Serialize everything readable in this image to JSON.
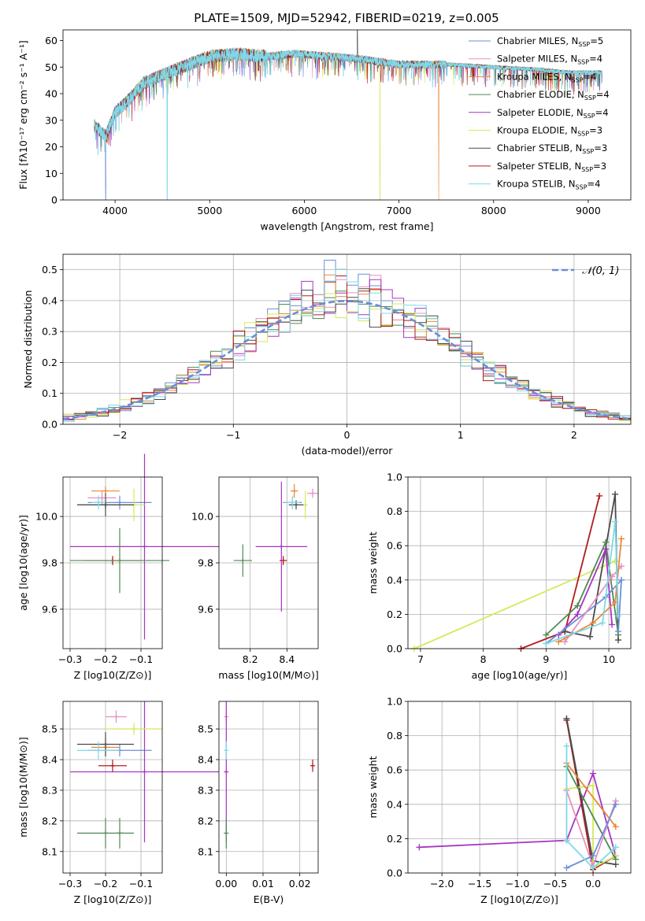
{
  "figure_title": "PLATE=1509, MJD=52942, FIBERID=0219, z=0.005",
  "models": [
    {
      "name": "Chabrier MILES, N_SSP=5",
      "base": "Chabrier MILES, N",
      "sub": "SSP",
      "tail": "=5",
      "color": "#6a8fd8"
    },
    {
      "name": "Salpeter MILES, N_SSP=4",
      "base": "Salpeter MILES, N",
      "sub": "SSP",
      "tail": "=4",
      "color": "#e88fc0"
    },
    {
      "name": "Kroupa MILES, N_SSP=4",
      "base": "Kroupa MILES, N",
      "sub": "SSP",
      "tail": "=4",
      "color": "#e8893a"
    },
    {
      "name": "Chabrier ELODIE, N_SSP=4",
      "base": "Chabrier ELODIE, N",
      "sub": "SSP",
      "tail": "=4",
      "color": "#4f8a52"
    },
    {
      "name": "Salpeter ELODIE, N_SSP=4",
      "base": "Salpeter ELODIE, N",
      "sub": "SSP",
      "tail": "=4",
      "color": "#a635c4"
    },
    {
      "name": "Kroupa ELODIE, N_SSP=3",
      "base": "Kroupa ELODIE, N",
      "sub": "SSP",
      "tail": "=3",
      "color": "#d6e85a"
    },
    {
      "name": "Chabrier STELIB, N_SSP=3",
      "base": "Chabrier STELIB, N",
      "sub": "SSP",
      "tail": "=3",
      "color": "#4a4a4a"
    },
    {
      "name": "Salpeter STELIB, N_SSP=3",
      "base": "Salpeter STELIB, N",
      "sub": "SSP",
      "tail": "=3",
      "color": "#b01c1c"
    },
    {
      "name": "Kroupa STELIB, N_SSP=4",
      "base": "Kroupa STELIB, N",
      "sub": "SSP",
      "tail": "=4",
      "color": "#7fd8e8"
    }
  ],
  "chart_data": [
    {
      "id": "spectrum",
      "type": "line",
      "xlabel": "wavelength [Angstrom, rest frame]",
      "ylabel": "Flux [fλ10⁻¹⁷ erg cm⁻² s⁻¹ A⁻¹]",
      "xlim": [
        3450,
        9450
      ],
      "ylim": [
        0,
        64
      ],
      "xticks": [
        4000,
        5000,
        6000,
        7000,
        8000,
        9000
      ],
      "yticks": [
        0,
        10,
        20,
        30,
        40,
        50,
        60
      ],
      "continuum": [
        [
          3780,
          28
        ],
        [
          3900,
          24
        ],
        [
          4000,
          33
        ],
        [
          4100,
          36
        ],
        [
          4300,
          44
        ],
        [
          4500,
          47
        ],
        [
          4700,
          50
        ],
        [
          5000,
          54
        ],
        [
          5300,
          55
        ],
        [
          5600,
          54
        ],
        [
          5900,
          55
        ],
        [
          6300,
          54
        ],
        [
          6600,
          53
        ],
        [
          7000,
          51
        ],
        [
          7500,
          51
        ],
        [
          8000,
          50
        ],
        [
          8500,
          49
        ],
        [
          8800,
          48
        ],
        [
          9000,
          48
        ],
        [
          9150,
          48
        ]
      ],
      "dropouts": [
        {
          "x": 3900,
          "model": 0
        },
        {
          "x": 4550,
          "model": 8
        },
        {
          "x": 6800,
          "model": 5
        },
        {
          "x": 7420,
          "model": 2
        }
      ],
      "spike": {
        "x": 6560,
        "y": 64
      },
      "grid": false,
      "legend": "top-right"
    },
    {
      "id": "residuals",
      "type": "histogram",
      "xlabel": "(data-model)/error",
      "ylabel": "Normed distribution",
      "xlim": [
        -2.5,
        2.5
      ],
      "ylim": [
        0,
        0.55
      ],
      "xticks": [
        -2,
        -1,
        0,
        1,
        2
      ],
      "yticks": [
        0.0,
        0.1,
        0.2,
        0.3,
        0.4,
        0.5
      ],
      "reference_label": "𝒩(0, 1)",
      "grid": true,
      "legend": "top-right"
    },
    {
      "id": "z_age",
      "type": "scatter",
      "xlabel": "Z [log10(Z/Z⊙)]",
      "ylabel": "age [log10(age/yr)]",
      "xlim": [
        -0.32,
        -0.04
      ],
      "ylim": [
        9.43,
        10.17
      ],
      "xticks": [
        -0.3,
        -0.2,
        -0.1
      ],
      "yticks": [
        9.6,
        9.8,
        10.0
      ],
      "points": [
        {
          "model": 0,
          "x": -0.16,
          "y": 10.06,
          "xerr": 0.09,
          "yerr": 0.03
        },
        {
          "model": 1,
          "x": -0.21,
          "y": 10.08,
          "xerr": 0.04,
          "yerr": 0.03
        },
        {
          "model": 2,
          "x": -0.2,
          "y": 10.11,
          "xerr": 0.04,
          "yerr": 0.02
        },
        {
          "model": 3,
          "x": -0.2,
          "y": 10.05,
          "xerr": 0.08,
          "yerr": 0.02
        },
        {
          "model": 4,
          "x": -0.09,
          "y": 9.87,
          "xerr": 0.21,
          "yerr": 0.4
        },
        {
          "model": 5,
          "x": -0.12,
          "y": 10.05,
          "xerr": 0.03,
          "yerr": 0.07
        },
        {
          "model": 6,
          "x": -0.2,
          "y": 10.05,
          "xerr": 0.08,
          "yerr": 0.05
        },
        {
          "model": 7,
          "x": -0.18,
          "y": 9.81,
          "xerr": 0.08,
          "yerr": 0.02
        },
        {
          "model": 8,
          "x": -0.22,
          "y": 10.06,
          "xerr": 0.02,
          "yerr": 0.03
        },
        {
          "model": 3,
          "x": -0.16,
          "y": 9.81,
          "xerr": 0.14,
          "yerr": 0.14
        }
      ]
    },
    {
      "id": "mass_age",
      "type": "scatter",
      "xlabel": "mass [log10(M/M⊙)]",
      "ylabel": "",
      "xlim": [
        8.03,
        8.57
      ],
      "ylim": [
        9.43,
        10.17
      ],
      "xticks": [
        8.2,
        8.4
      ],
      "yticks": [
        9.6,
        9.8,
        10.0
      ],
      "points": [
        {
          "model": 0,
          "x": 8.43,
          "y": 10.06,
          "xerr": 0.05,
          "yerr": 0.02
        },
        {
          "model": 1,
          "x": 8.54,
          "y": 10.1,
          "xerr": 0.03,
          "yerr": 0.02
        },
        {
          "model": 2,
          "x": 8.44,
          "y": 10.11,
          "xerr": 0.02,
          "yerr": 0.03
        },
        {
          "model": 3,
          "x": 8.16,
          "y": 9.81,
          "xerr": 0.05,
          "yerr": 0.07
        },
        {
          "model": 4,
          "x": 8.37,
          "y": 9.87,
          "xerr": 0.14,
          "yerr": 0.28
        },
        {
          "model": 5,
          "x": 8.5,
          "y": 10.05,
          "xerr": 0.01,
          "yerr": 0.06
        },
        {
          "model": 6,
          "x": 8.45,
          "y": 10.05,
          "xerr": 0.04,
          "yerr": 0.02
        },
        {
          "model": 7,
          "x": 8.38,
          "y": 9.81,
          "xerr": 0.02,
          "yerr": 0.02
        },
        {
          "model": 8,
          "x": 8.43,
          "y": 10.06,
          "xerr": 0.04,
          "yerr": 0.03
        }
      ]
    },
    {
      "id": "age_weight",
      "type": "line",
      "xlabel": "age [log10(age/yr)]",
      "ylabel": "mass weight",
      "xlim": [
        6.8,
        10.35
      ],
      "ylim": [
        0,
        1
      ],
      "xticks": [
        7,
        8,
        9,
        10
      ],
      "yticks": [
        0.0,
        0.2,
        0.4,
        0.6,
        0.8,
        1.0
      ],
      "series": [
        {
          "model": 5,
          "points": [
            [
              6.9,
              0.0
            ],
            [
              10.1,
              0.51
            ]
          ]
        },
        {
          "model": 7,
          "points": [
            [
              8.6,
              0.0
            ],
            [
              9.3,
              0.1
            ],
            [
              9.85,
              0.89
            ]
          ]
        },
        {
          "model": 6,
          "points": [
            [
              9.3,
              0.1
            ],
            [
              9.7,
              0.07
            ],
            [
              10.1,
              0.9
            ],
            [
              10.15,
              0.05
            ]
          ]
        },
        {
          "model": 3,
          "points": [
            [
              9.0,
              0.08
            ],
            [
              9.5,
              0.25
            ],
            [
              9.95,
              0.62
            ],
            [
              10.15,
              0.08
            ]
          ]
        },
        {
          "model": 4,
          "points": [
            [
              9.2,
              0.08
            ],
            [
              9.5,
              0.2
            ],
            [
              9.95,
              0.58
            ],
            [
              10.05,
              0.14
            ]
          ]
        },
        {
          "model": 0,
          "points": [
            [
              9.0,
              0.03
            ],
            [
              9.95,
              0.3
            ],
            [
              10.2,
              0.4
            ],
            [
              10.15,
              0.1
            ]
          ]
        },
        {
          "model": 1,
          "points": [
            [
              9.3,
              0.04
            ],
            [
              10.05,
              0.42
            ],
            [
              10.2,
              0.48
            ]
          ]
        },
        {
          "model": 2,
          "points": [
            [
              9.2,
              0.04
            ],
            [
              9.75,
              0.15
            ],
            [
              10.1,
              0.27
            ],
            [
              10.2,
              0.64
            ]
          ]
        },
        {
          "model": 8,
          "points": [
            [
              9.0,
              0.03
            ],
            [
              9.9,
              0.15
            ],
            [
              10.1,
              0.74
            ],
            [
              10.15,
              0.19
            ]
          ]
        }
      ]
    },
    {
      "id": "z_mass",
      "type": "scatter",
      "xlabel": "Z [log10(Z/Z⊙)]",
      "ylabel": "mass [log10(M/M⊙)]",
      "xlim": [
        -0.32,
        -0.04
      ],
      "ylim": [
        8.03,
        8.59
      ],
      "xticks": [
        -0.3,
        -0.2,
        -0.1
      ],
      "yticks": [
        8.1,
        8.2,
        8.3,
        8.4,
        8.5
      ],
      "points": [
        {
          "model": 0,
          "x": -0.16,
          "y": 8.43,
          "xerr": 0.09,
          "yerr": 0.02
        },
        {
          "model": 1,
          "x": -0.17,
          "y": 8.54,
          "xerr": 0.03,
          "yerr": 0.02
        },
        {
          "model": 2,
          "x": -0.2,
          "y": 8.44,
          "xerr": 0.04,
          "yerr": 0.03
        },
        {
          "model": 3,
          "x": -0.2,
          "y": 8.16,
          "xerr": 0.08,
          "yerr": 0.05
        },
        {
          "model": 4,
          "x": -0.09,
          "y": 8.36,
          "xerr": 0.21,
          "yerr": 0.23
        },
        {
          "model": 5,
          "x": -0.12,
          "y": 8.5,
          "xerr": 0.08,
          "yerr": 0.02
        },
        {
          "model": 6,
          "x": -0.2,
          "y": 8.45,
          "xerr": 0.08,
          "yerr": 0.04
        },
        {
          "model": 7,
          "x": -0.18,
          "y": 8.38,
          "xerr": 0.04,
          "yerr": 0.02
        },
        {
          "model": 8,
          "x": -0.22,
          "y": 8.43,
          "xerr": 0.06,
          "yerr": 0.03
        },
        {
          "model": 3,
          "x": -0.16,
          "y": 8.16,
          "xerr": 0.01,
          "yerr": 0.05
        }
      ]
    },
    {
      "id": "ebv_mass",
      "type": "scatter",
      "xlabel": "E(B-V)",
      "ylabel": "",
      "xlim": [
        -0.002,
        0.025
      ],
      "ylim": [
        8.03,
        8.59
      ],
      "xticks": [
        0.0,
        0.01,
        0.02
      ],
      "yticks": [
        8.1,
        8.2,
        8.3,
        8.4,
        8.5
      ],
      "points": [
        {
          "model": 1,
          "x": 0.0,
          "y": 8.54,
          "xerr": 0.0,
          "yerr": 0.02
        },
        {
          "model": 4,
          "x": 0.0,
          "y": 8.36,
          "xerr": 0.0,
          "yerr": 0.23
        },
        {
          "model": 3,
          "x": 0.0,
          "y": 8.16,
          "xerr": 0.0,
          "yerr": 0.05
        },
        {
          "model": 8,
          "x": 0.0,
          "y": 8.43,
          "xerr": 0.0,
          "yerr": 0.03
        },
        {
          "model": 7,
          "x": 0.0235,
          "y": 8.38,
          "xerr": 0.0,
          "yerr": 0.02
        }
      ]
    },
    {
      "id": "z_weight",
      "type": "line",
      "xlabel": "Z [log10(Z/Z⊙)]",
      "ylabel": "mass weight",
      "xlim": [
        -2.45,
        0.5
      ],
      "ylim": [
        0,
        1
      ],
      "xticks": [
        -2.0,
        -1.5,
        -1.0,
        -0.5,
        0.0
      ],
      "yticks": [
        0.0,
        0.2,
        0.4,
        0.6,
        0.8,
        1.0
      ],
      "series": [
        {
          "model": 4,
          "points": [
            [
              -2.3,
              0.15
            ],
            [
              -0.35,
              0.19
            ],
            [
              0.0,
              0.58
            ],
            [
              0.3,
              0.1
            ]
          ]
        },
        {
          "model": 7,
          "points": [
            [
              -0.35,
              0.89
            ],
            [
              0.0,
              0.02
            ],
            [
              0.3,
              0.1
            ]
          ]
        },
        {
          "model": 6,
          "points": [
            [
              -0.35,
              0.9
            ],
            [
              0.0,
              0.07
            ],
            [
              0.3,
              0.05
            ]
          ]
        },
        {
          "model": 5,
          "points": [
            [
              -0.35,
              0.49
            ],
            [
              0.0,
              0.51
            ],
            [
              0.0,
              0.03
            ],
            [
              0.3,
              0.1
            ]
          ]
        },
        {
          "model": 3,
          "points": [
            [
              -0.35,
              0.62
            ],
            [
              0.3,
              0.08
            ]
          ]
        },
        {
          "model": 2,
          "points": [
            [
              -0.35,
              0.64
            ],
            [
              0.3,
              0.27
            ]
          ]
        },
        {
          "model": 1,
          "points": [
            [
              -0.35,
              0.48
            ],
            [
              0.0,
              0.04
            ],
            [
              0.3,
              0.42
            ]
          ]
        },
        {
          "model": 0,
          "points": [
            [
              -0.35,
              0.03
            ],
            [
              0.0,
              0.1
            ],
            [
              0.3,
              0.4
            ]
          ]
        },
        {
          "model": 8,
          "points": [
            [
              -0.35,
              0.74
            ],
            [
              -0.35,
              0.19
            ],
            [
              0.0,
              0.03
            ],
            [
              0.3,
              0.15
            ]
          ]
        }
      ]
    }
  ]
}
